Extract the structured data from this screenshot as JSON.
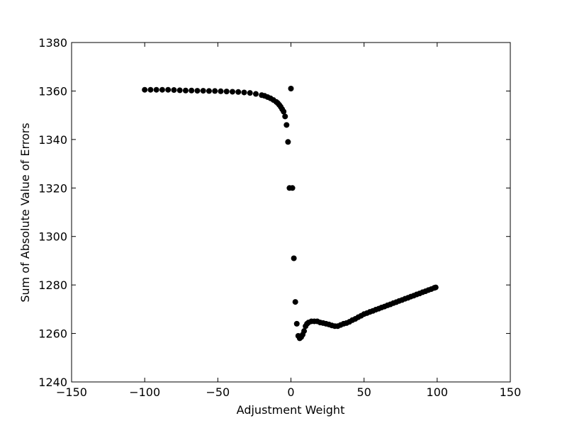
{
  "chart_data": {
    "type": "scatter",
    "xlabel": "Adjustment Weight",
    "ylabel": "Sum of Absolute Value of Errors",
    "xlim": [
      -150,
      150
    ],
    "xticks": [
      {
        "value": -150,
        "label": "−150"
      },
      {
        "value": -100,
        "label": "−100"
      },
      {
        "value": -50,
        "label": "−50"
      },
      0,
      50,
      100,
      150
    ],
    "ylim": [
      1240,
      1380
    ],
    "yticks": [
      1240,
      1260,
      1280,
      1300,
      1320,
      1340,
      1360,
      1380
    ],
    "series": [
      {
        "color": "#000000",
        "x": [
          -100,
          -96,
          -92,
          -88,
          -84,
          -80,
          -76,
          -72,
          -68,
          -64,
          -60,
          -56,
          -52,
          -48,
          -44,
          -40,
          -36,
          -32,
          -28,
          -24,
          -20,
          -18,
          -16,
          -14,
          -12,
          -10,
          -9,
          -8,
          -7,
          -6,
          -5,
          -4,
          -3,
          -2,
          -1,
          0,
          1,
          2,
          3,
          4,
          5,
          6,
          7,
          8,
          9,
          10,
          11,
          12,
          14,
          16,
          18,
          20,
          22,
          24,
          26,
          28,
          30,
          32,
          34,
          36,
          38,
          40,
          42,
          44,
          46,
          48,
          50,
          52,
          54,
          56,
          58,
          60,
          62,
          64,
          66,
          68,
          70,
          72,
          74,
          76,
          78,
          80,
          82,
          84,
          86,
          88,
          90,
          92,
          94,
          96,
          98,
          99
        ],
        "values": [
          1360.5,
          1360.5,
          1360.5,
          1360.5,
          1360.5,
          1360.4,
          1360.3,
          1360.2,
          1360.2,
          1360.1,
          1360.1,
          1360,
          1360,
          1359.9,
          1359.8,
          1359.7,
          1359.6,
          1359.4,
          1359.2,
          1358.8,
          1358.3,
          1358,
          1357.5,
          1357,
          1356.3,
          1355.5,
          1355,
          1354.3,
          1353.5,
          1352.5,
          1351.5,
          1349.5,
          1346,
          1339,
          1320,
          1361,
          1320,
          1291,
          1273,
          1264,
          1259,
          1258,
          1258.5,
          1259.5,
          1261,
          1263,
          1264,
          1264.5,
          1265,
          1265,
          1265,
          1264.5,
          1264.3,
          1264,
          1263.7,
          1263.3,
          1263,
          1263,
          1263.5,
          1264,
          1264.3,
          1264.8,
          1265.5,
          1266,
          1266.7,
          1267.3,
          1268,
          1268.4,
          1268.9,
          1269.3,
          1269.8,
          1270.2,
          1270.7,
          1271.1,
          1271.6,
          1272,
          1272.5,
          1272.9,
          1273.4,
          1273.8,
          1274.3,
          1274.7,
          1275.2,
          1275.6,
          1276.1,
          1276.5,
          1277,
          1277.4,
          1277.9,
          1278.3,
          1278.8,
          1279
        ]
      }
    ]
  }
}
